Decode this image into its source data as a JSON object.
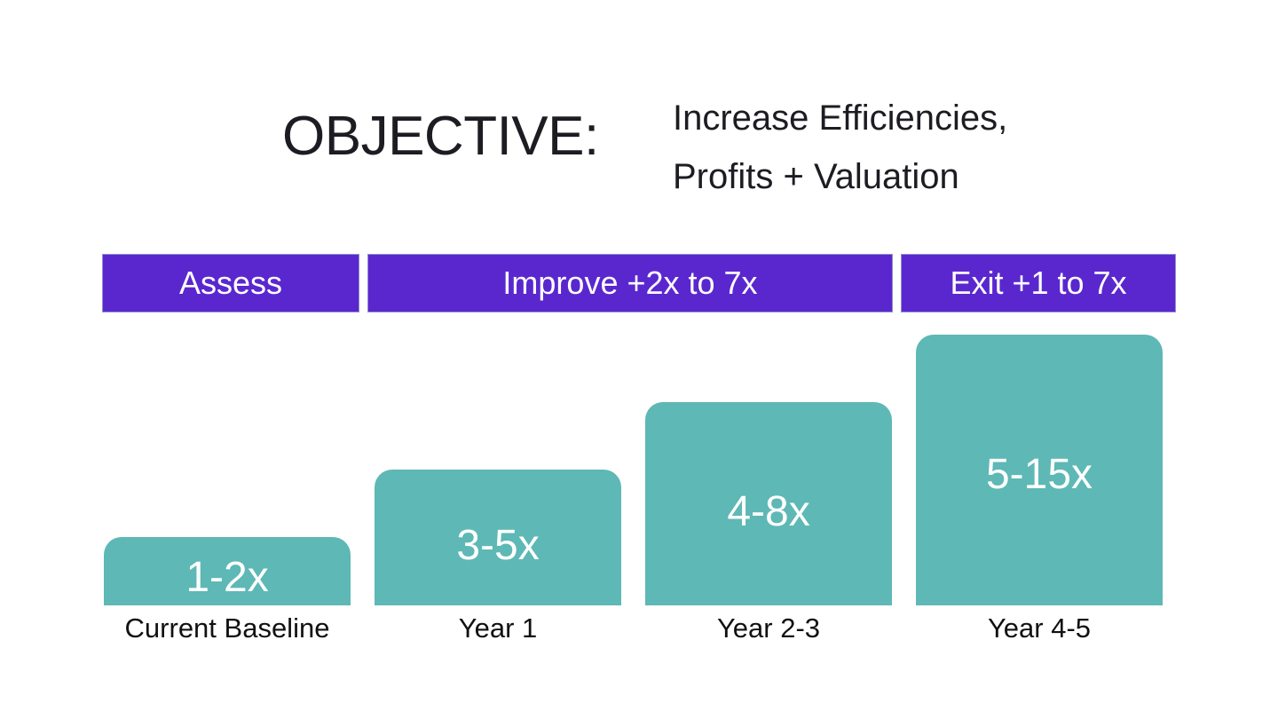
{
  "objective": {
    "title": "OBJECTIVE:",
    "line1": "Increase Efficiencies,",
    "line2": "Profits + Valuation"
  },
  "phases": [
    {
      "label": "Assess"
    },
    {
      "label": "Improve +2x to 7x"
    },
    {
      "label": "Exit +1 to 7x"
    }
  ],
  "steps": [
    {
      "value": "1-2x",
      "label": "Current Baseline",
      "level": 1
    },
    {
      "value": "3-5x",
      "label": "Year 1",
      "level": 2
    },
    {
      "value": "4-8x",
      "label": "Year 2-3",
      "level": 3
    },
    {
      "value": "5-15x",
      "label": "Year 4-5",
      "level": 4
    }
  ],
  "colors": {
    "phase_bar": "#5a27cf",
    "step_fill": "#5eb8b6",
    "text": "#1c1c22"
  }
}
